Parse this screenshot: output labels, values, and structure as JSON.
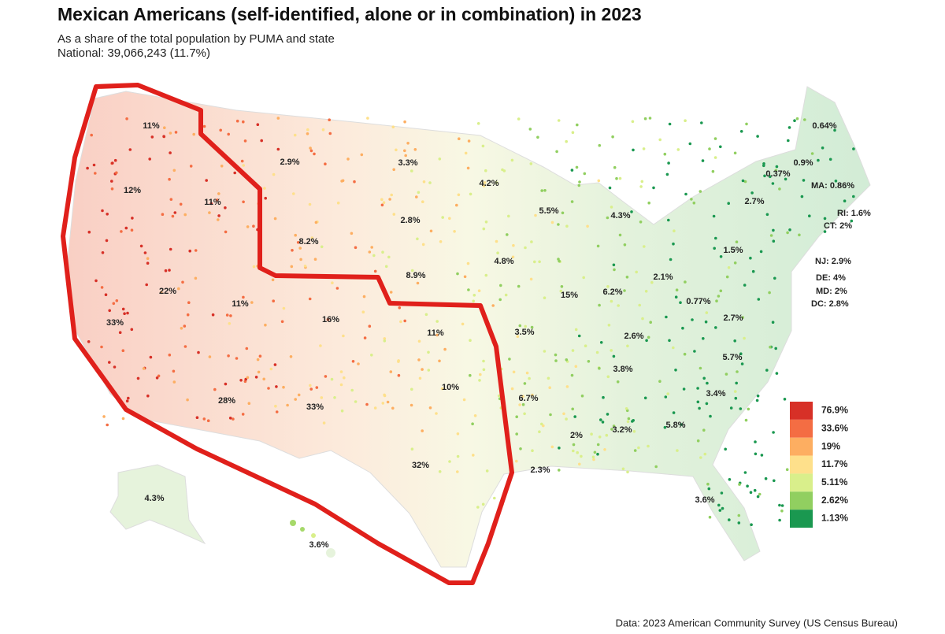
{
  "header": {
    "title": "Mexican Americans (self-identified, alone or in combination) in 2023",
    "subtitle": "As a share of the total population by PUMA and state",
    "national": "National: 39,066,243 (11.7%)"
  },
  "map": {
    "state_labels": [
      "11%",
      "12%",
      "11%",
      "2.9%",
      "3.3%",
      "4.2%",
      "5.5%",
      "4.3%",
      "0.64%",
      "0.9%",
      "0.37%",
      "2.7%",
      "8.2%",
      "2.8%",
      "4.8%",
      "1.5%",
      "8.9%",
      "2.1%",
      "0.77%",
      "22%",
      "11%",
      "16%",
      "15%",
      "6.2%",
      "33%",
      "11%",
      "3.5%",
      "2.6%",
      "2.7%",
      "5.7%",
      "3.8%",
      "10%",
      "28%",
      "33%",
      "6.7%",
      "3.4%",
      "5.8%",
      "2%",
      "3.2%",
      "32%",
      "2.3%",
      "3.6%",
      "4.3%",
      "3.6%"
    ],
    "small_state_labels": [
      "MA: 0.86%",
      "RI: 1.6%",
      "CT: 2%",
      "NJ: 2.9%",
      "DE: 4%",
      "MD: 2%",
      "DC: 2.8%"
    ]
  },
  "legend": {
    "items": [
      {
        "label": "76.9%",
        "color": "#d73027"
      },
      {
        "label": "33.6%",
        "color": "#f46d43"
      },
      {
        "label": "19%",
        "color": "#fdae61"
      },
      {
        "label": "11.7%",
        "color": "#fee08b"
      },
      {
        "label": "5.11%",
        "color": "#d9ef8b"
      },
      {
        "label": "2.62%",
        "color": "#91cf60"
      },
      {
        "label": "1.13%",
        "color": "#1a9850"
      }
    ]
  },
  "footer": {
    "source": "Data: 2023 American Community Survey (US Census Bureau)"
  }
}
